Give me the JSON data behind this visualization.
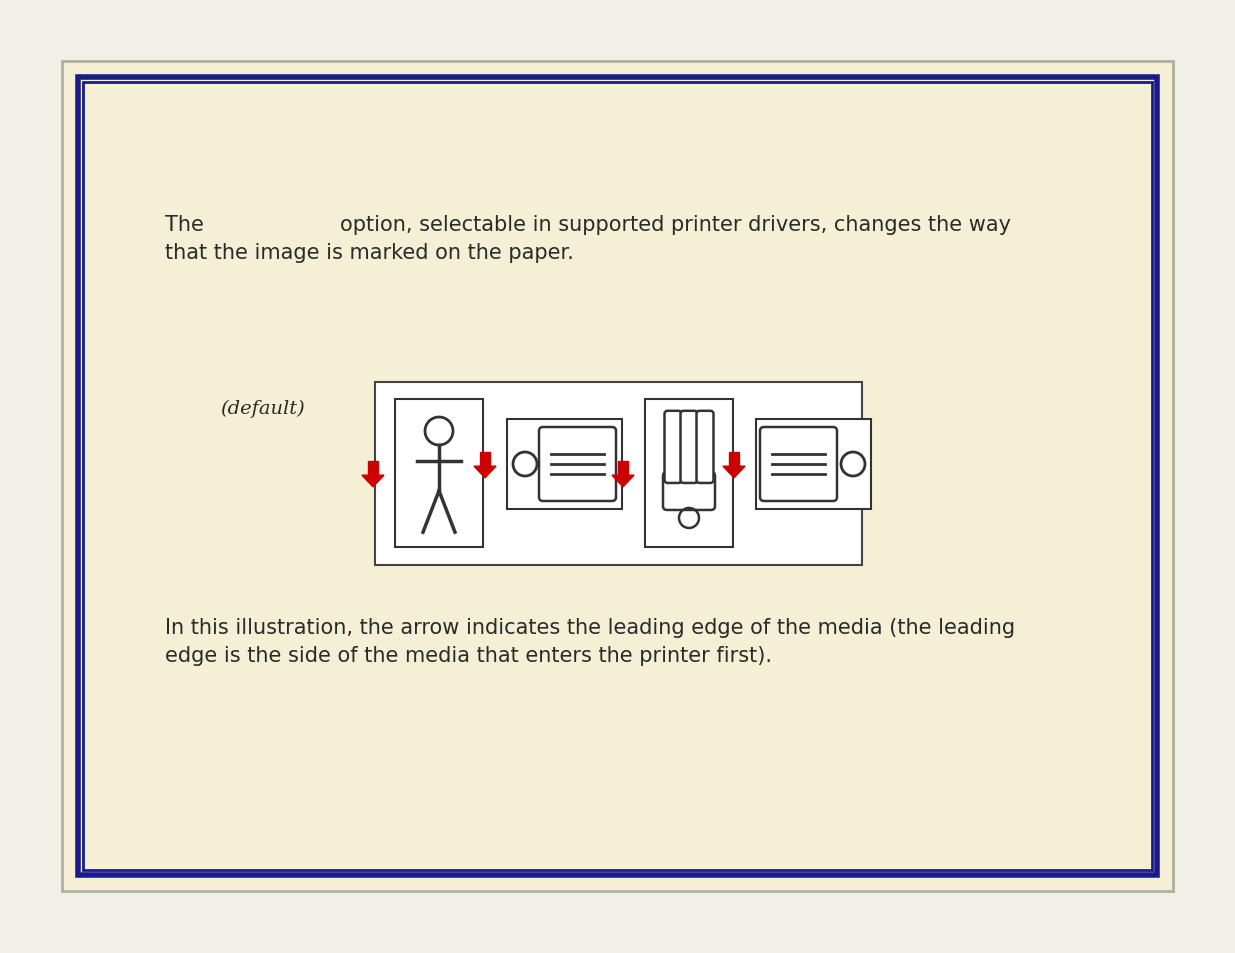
{
  "bg_outer": "#f0efe8",
  "bg_inner": "#f5f0d5",
  "border_outer_color": "#b0b0a0",
  "border_inner_color": "#1a1a8c",
  "text_color": "#2a2a2a",
  "arrow_color": "#cc0000",
  "icon_color": "#333333",
  "illus_bg": "#ffffff",
  "top_text1": "The",
  "top_text2": "option, selectable in supported printer drivers, changes the way",
  "top_text3": "that the image is marked on the paper.",
  "default_label": "(default)",
  "bottom1": "In this illustration, the arrow indicates the leading edge of the media (the leading",
  "bottom2": "edge is the side of the media that enters the printer first)."
}
